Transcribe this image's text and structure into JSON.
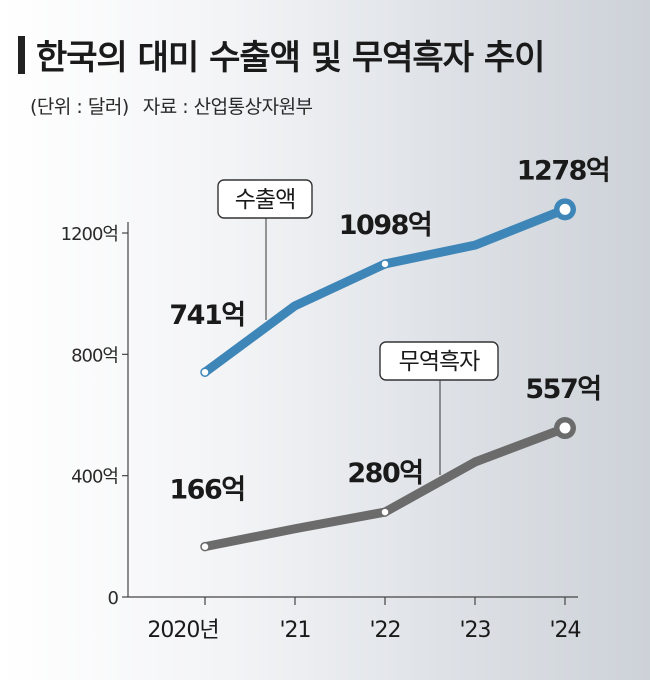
{
  "header": {
    "title": "한국의 대미 수출액 및 무역흑자 추이",
    "unit": "(단위 : 달러)",
    "source": "자료 : 산업통상자원부"
  },
  "colors": {
    "export": "#3f86b8",
    "surplus": "#6b6b6b",
    "axis": "#444444"
  },
  "chart_data": {
    "type": "line",
    "categories": [
      "2020년",
      "'21",
      "'22",
      "'23",
      "'24"
    ],
    "ylim": [
      0,
      1450
    ],
    "y_ticks": [
      {
        "value": 0,
        "label": "0"
      },
      {
        "value": 400,
        "label": "400억"
      },
      {
        "value": 800,
        "label": "800억"
      },
      {
        "value": 1200,
        "label": "1200억"
      }
    ],
    "xlabel": "",
    "ylabel": "",
    "grid": false,
    "series": [
      {
        "name": "수출액",
        "values": [
          741,
          960,
          1098,
          1160,
          1278
        ],
        "labels": [
          "741억",
          "",
          "1098억",
          "",
          "1278억"
        ]
      },
      {
        "name": "무역흑자",
        "values": [
          166,
          225,
          280,
          445,
          557
        ],
        "labels": [
          "166억",
          "",
          "280억",
          "",
          "557억"
        ]
      }
    ]
  }
}
